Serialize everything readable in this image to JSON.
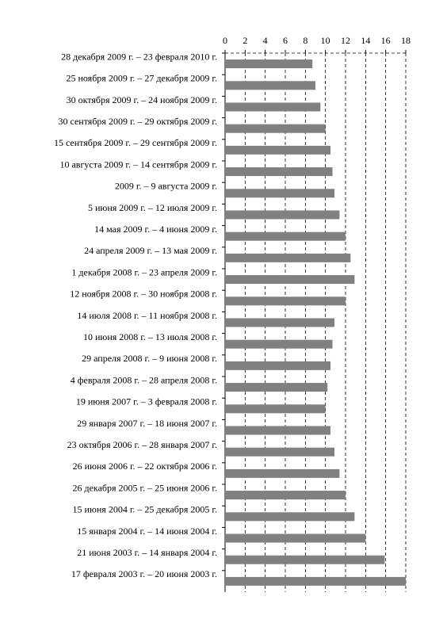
{
  "chart_data": {
    "type": "bar",
    "orientation": "horizontal",
    "categories": [
      "28 декабря  2009 г. – 23 февраля 2010 г.",
      "25 ноября 2009 г. – 27 декабря 2009 г.",
      "30 октября 2009 г. – 24 ноября 2009 г.",
      "30 сентября 2009 г. – 29 октября 2009 г.",
      "15 сентября 2009 г. – 29 сентября 2009 г.",
      "10 августа 2009 г. – 14 сентября 2009 г.",
      "2009 г. – 9 августа 2009 г.",
      "5 июня 2009 г. – 12 июля 2009 г.",
      "14 мая 2009 г. – 4 июня 2009 г.",
      "24 апреля 2009 г. – 13 мая 2009 г.",
      "1 декабря 2008 г. – 23 апреля 2009 г.",
      "12 ноября 2008 г. – 30 ноября 2008 г.",
      "14 июля 2008 г. – 11 ноября 2008 г.",
      "10 июня 2008 г. – 13 июля 2008 г.",
      "29 апреля 2008 г. – 9 июня 2008 г.",
      "4 февраля 2008 г. – 28 апреля 2008 г.",
      "19 июня 2007 г. – 3 февраля 2008 г.",
      "29 января 2007 г. – 18 июня 2007 г.",
      "23 октября 2006 г. – 28 января 2007 г.",
      "26 июня 2006 г. – 22 октября 2006 г.",
      "26 декабря 2005 г. – 25 июня 2006 г.",
      "15 июня 2004 г. – 25 декабря 2005 г.",
      "15 января 2004 г. – 14 июня 2004 г.",
      "21 июня 2003 г. – 14 января 2004 г.",
      "17 февраля 2003 г. – 20 июня 2003 г."
    ],
    "values": [
      8.7,
      9.0,
      9.5,
      10.0,
      10.5,
      10.7,
      10.9,
      11.4,
      12.0,
      12.5,
      12.9,
      12.0,
      10.9,
      10.7,
      10.5,
      10.2,
      10.0,
      10.5,
      10.9,
      11.4,
      12.0,
      12.9,
      14.0,
      15.9,
      18.0
    ],
    "color": "#808080",
    "xlim": [
      0,
      18
    ],
    "xticks": [
      0,
      2,
      4,
      6,
      8,
      10,
      12,
      14,
      16,
      18
    ],
    "grid": true
  }
}
